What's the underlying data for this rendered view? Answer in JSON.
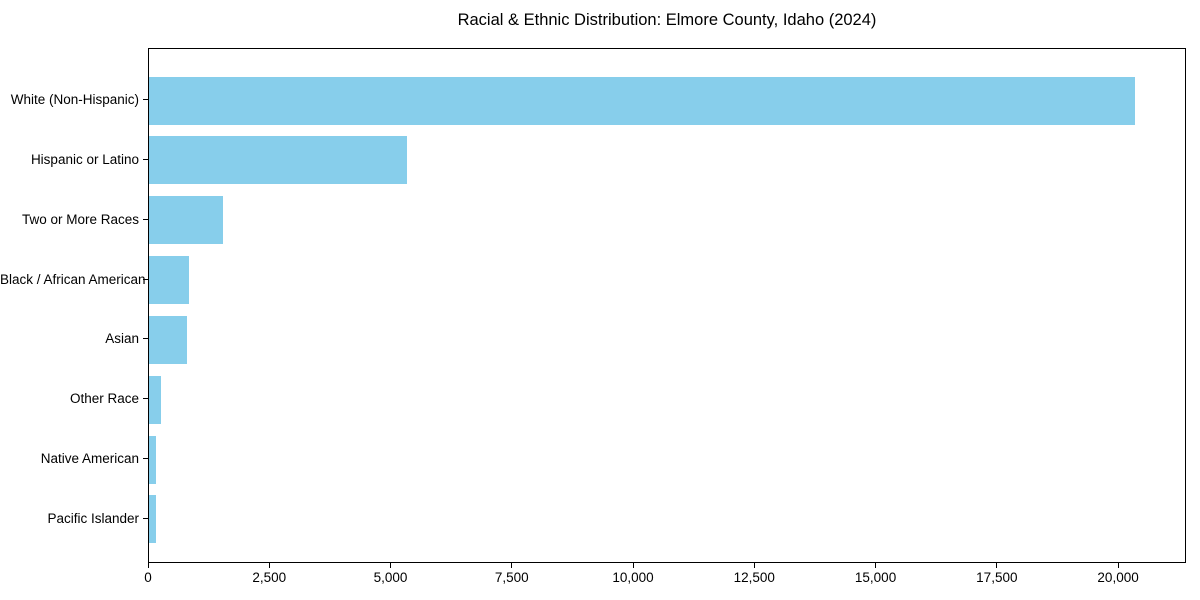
{
  "figure": {
    "background": "#ffffff",
    "text_color": "#000000",
    "spine_color": "#000000"
  },
  "chart_data": {
    "type": "bar",
    "orientation": "horizontal",
    "title": "Racial & Ethnic Distribution: Elmore County, Idaho (2024)",
    "categories": [
      "White (Non-Hispanic)",
      "Hispanic or Latino",
      "Two or More Races",
      "Black / African American",
      "Asian",
      "Other Race",
      "Native American",
      "Pacific Islander"
    ],
    "values": [
      20370,
      5330,
      1520,
      830,
      775,
      250,
      150,
      135
    ],
    "bar_color": "#87CEEB",
    "xlabel": "",
    "ylabel": "",
    "xlim": [
      0,
      21400
    ],
    "x_ticks": [
      0,
      2500,
      5000,
      7500,
      10000,
      12500,
      15000,
      17500,
      20000
    ],
    "x_tick_labels": [
      "0",
      "2,500",
      "5,000",
      "7,500",
      "10,000",
      "12,500",
      "15,000",
      "17,500",
      "20,000"
    ],
    "grid": false,
    "legend": "none"
  }
}
